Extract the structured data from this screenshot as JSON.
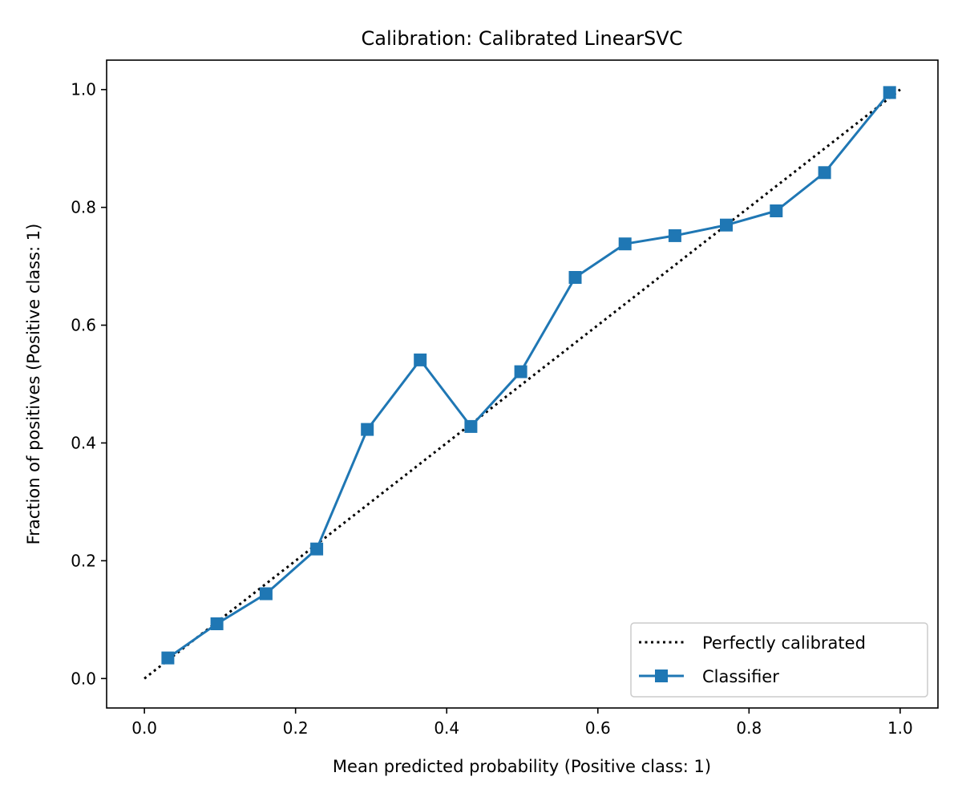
{
  "chart_data": {
    "type": "line",
    "title": "Calibration: Calibrated LinearSVC",
    "xlabel": "Mean predicted probability (Positive class: 1)",
    "ylabel": "Fraction of positives (Positive class: 1)",
    "xlim": [
      -0.05,
      1.05
    ],
    "ylim": [
      -0.05,
      1.05
    ],
    "xticks": [
      {
        "value": 0.0,
        "label": "0.0"
      },
      {
        "value": 0.2,
        "label": "0.2"
      },
      {
        "value": 0.4,
        "label": "0.4"
      },
      {
        "value": 0.6,
        "label": "0.6"
      },
      {
        "value": 0.8,
        "label": "0.8"
      },
      {
        "value": 1.0,
        "label": "1.0"
      }
    ],
    "yticks": [
      {
        "value": 0.0,
        "label": "0.0"
      },
      {
        "value": 0.2,
        "label": "0.2"
      },
      {
        "value": 0.4,
        "label": "0.4"
      },
      {
        "value": 0.6,
        "label": "0.6"
      },
      {
        "value": 0.8,
        "label": "0.8"
      },
      {
        "value": 1.0,
        "label": "1.0"
      }
    ],
    "grid": false,
    "legend_position": "lower-right",
    "series": [
      {
        "name": "Perfectly calibrated",
        "style": "dotted",
        "color": "#000000",
        "x": [
          0.0,
          1.0
        ],
        "y": [
          0.0,
          1.0
        ]
      },
      {
        "name": "Classifier",
        "style": "solid",
        "marker": "square",
        "color": "#1f77b4",
        "x": [
          0.031,
          0.096,
          0.161,
          0.228,
          0.295,
          0.365,
          0.432,
          0.498,
          0.57,
          0.636,
          0.702,
          0.77,
          0.836,
          0.9,
          0.986
        ],
        "y": [
          0.035,
          0.093,
          0.144,
          0.22,
          0.423,
          0.541,
          0.428,
          0.521,
          0.681,
          0.738,
          0.752,
          0.77,
          0.794,
          0.859,
          0.995
        ]
      }
    ]
  }
}
